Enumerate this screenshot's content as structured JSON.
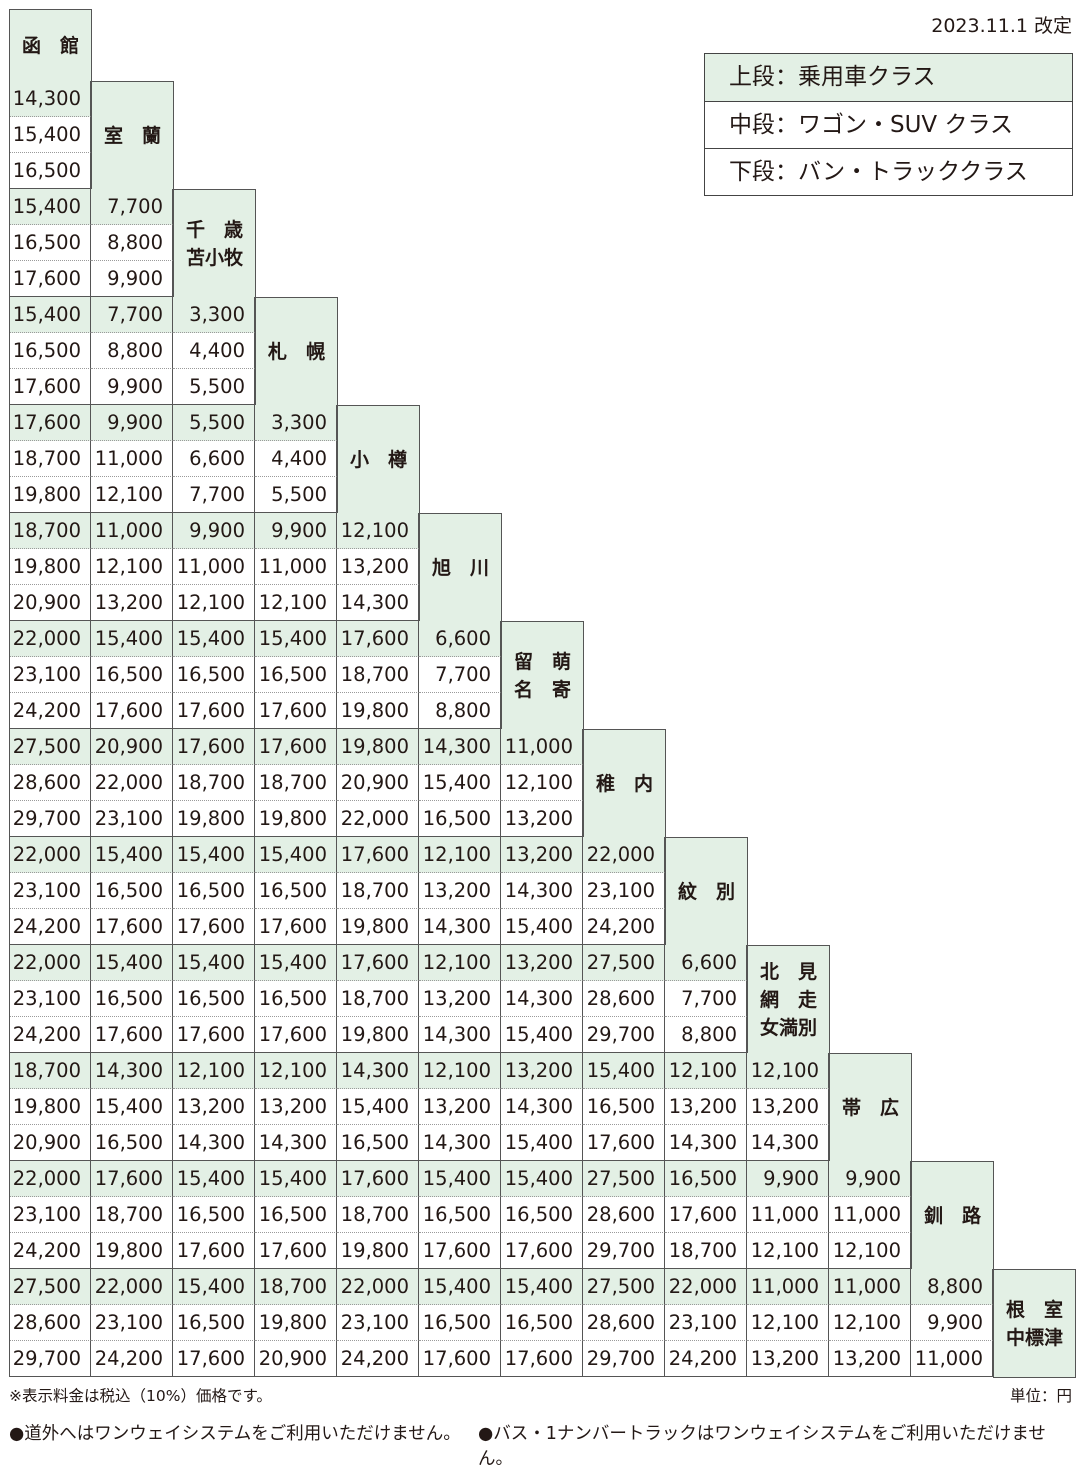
{
  "revision_date": "2023.11.1 改定",
  "legend": [
    "上段：乗用車クラス",
    "中段：ワゴン・SUV クラス",
    "下段：バン・トラッククラス"
  ],
  "stations": [
    [
      "函　館"
    ],
    [
      "室　蘭"
    ],
    [
      "千　歳",
      "苫小牧"
    ],
    [
      "札　幌"
    ],
    [
      "小　樽"
    ],
    [
      "旭　川"
    ],
    [
      "留　萌",
      "名　寄"
    ],
    [
      "稚　内"
    ],
    [
      "紋　別"
    ],
    [
      "北　見",
      "網　走",
      "女満別"
    ],
    [
      "帯　広"
    ],
    [
      "釧　路"
    ],
    [
      "根　室",
      "中標津"
    ]
  ],
  "fares": [
    [
      [
        "14,300",
        "15,400",
        "16,500"
      ]
    ],
    [
      [
        "15,400",
        "16,500",
        "17,600"
      ],
      [
        "7,700",
        "8,800",
        "9,900"
      ]
    ],
    [
      [
        "15,400",
        "16,500",
        "17,600"
      ],
      [
        "7,700",
        "8,800",
        "9,900"
      ],
      [
        "3,300",
        "4,400",
        "5,500"
      ]
    ],
    [
      [
        "17,600",
        "18,700",
        "19,800"
      ],
      [
        "9,900",
        "11,000",
        "12,100"
      ],
      [
        "5,500",
        "6,600",
        "7,700"
      ],
      [
        "3,300",
        "4,400",
        "5,500"
      ]
    ],
    [
      [
        "18,700",
        "19,800",
        "20,900"
      ],
      [
        "11,000",
        "12,100",
        "13,200"
      ],
      [
        "9,900",
        "11,000",
        "12,100"
      ],
      [
        "9,900",
        "11,000",
        "12,100"
      ],
      [
        "12,100",
        "13,200",
        "14,300"
      ]
    ],
    [
      [
        "22,000",
        "23,100",
        "24,200"
      ],
      [
        "15,400",
        "16,500",
        "17,600"
      ],
      [
        "15,400",
        "16,500",
        "17,600"
      ],
      [
        "15,400",
        "16,500",
        "17,600"
      ],
      [
        "17,600",
        "18,700",
        "19,800"
      ],
      [
        "6,600",
        "7,700",
        "8,800"
      ]
    ],
    [
      [
        "27,500",
        "28,600",
        "29,700"
      ],
      [
        "20,900",
        "22,000",
        "23,100"
      ],
      [
        "17,600",
        "18,700",
        "19,800"
      ],
      [
        "17,600",
        "18,700",
        "19,800"
      ],
      [
        "19,800",
        "20,900",
        "22,000"
      ],
      [
        "14,300",
        "15,400",
        "16,500"
      ],
      [
        "11,000",
        "12,100",
        "13,200"
      ]
    ],
    [
      [
        "22,000",
        "23,100",
        "24,200"
      ],
      [
        "15,400",
        "16,500",
        "17,600"
      ],
      [
        "15,400",
        "16,500",
        "17,600"
      ],
      [
        "15,400",
        "16,500",
        "17,600"
      ],
      [
        "17,600",
        "18,700",
        "19,800"
      ],
      [
        "12,100",
        "13,200",
        "14,300"
      ],
      [
        "13,200",
        "14,300",
        "15,400"
      ],
      [
        "22,000",
        "23,100",
        "24,200"
      ]
    ],
    [
      [
        "22,000",
        "23,100",
        "24,200"
      ],
      [
        "15,400",
        "16,500",
        "17,600"
      ],
      [
        "15,400",
        "16,500",
        "17,600"
      ],
      [
        "15,400",
        "16,500",
        "17,600"
      ],
      [
        "17,600",
        "18,700",
        "19,800"
      ],
      [
        "12,100",
        "13,200",
        "14,300"
      ],
      [
        "13,200",
        "14,300",
        "15,400"
      ],
      [
        "27,500",
        "28,600",
        "29,700"
      ],
      [
        "6,600",
        "7,700",
        "8,800"
      ]
    ],
    [
      [
        "18,700",
        "19,800",
        "20,900"
      ],
      [
        "14,300",
        "15,400",
        "16,500"
      ],
      [
        "12,100",
        "13,200",
        "14,300"
      ],
      [
        "12,100",
        "13,200",
        "14,300"
      ],
      [
        "14,300",
        "15,400",
        "16,500"
      ],
      [
        "12,100",
        "13,200",
        "14,300"
      ],
      [
        "13,200",
        "14,300",
        "15,400"
      ],
      [
        "15,400",
        "16,500",
        "17,600"
      ],
      [
        "12,100",
        "13,200",
        "14,300"
      ],
      [
        "12,100",
        "13,200",
        "14,300"
      ]
    ],
    [
      [
        "22,000",
        "23,100",
        "24,200"
      ],
      [
        "17,600",
        "18,700",
        "19,800"
      ],
      [
        "15,400",
        "16,500",
        "17,600"
      ],
      [
        "15,400",
        "16,500",
        "17,600"
      ],
      [
        "17,600",
        "18,700",
        "19,800"
      ],
      [
        "15,400",
        "16,500",
        "17,600"
      ],
      [
        "15,400",
        "16,500",
        "17,600"
      ],
      [
        "27,500",
        "28,600",
        "29,700"
      ],
      [
        "16,500",
        "17,600",
        "18,700"
      ],
      [
        "9,900",
        "11,000",
        "12,100"
      ],
      [
        "9,900",
        "11,000",
        "12,100"
      ]
    ],
    [
      [
        "27,500",
        "28,600",
        "29,700"
      ],
      [
        "22,000",
        "23,100",
        "24,200"
      ],
      [
        "15,400",
        "16,500",
        "17,600"
      ],
      [
        "18,700",
        "19,800",
        "20,900"
      ],
      [
        "22,000",
        "23,100",
        "24,200"
      ],
      [
        "15,400",
        "16,500",
        "17,600"
      ],
      [
        "15,400",
        "16,500",
        "17,600"
      ],
      [
        "27,500",
        "28,600",
        "29,700"
      ],
      [
        "22,000",
        "23,100",
        "24,200"
      ],
      [
        "11,000",
        "12,100",
        "13,200"
      ],
      [
        "11,000",
        "12,100",
        "13,200"
      ],
      [
        "8,800",
        "9,900",
        "11,000"
      ]
    ]
  ],
  "note_tax": "※表示料金は税込（10%）価格です。",
  "note_unit": "単位：円",
  "footnotes": [
    "●道外へはワンウェイシステムをご利用いただけません。",
    "●バス・1ナンバートラックはワンウェイシステムをご利用いただけません。"
  ]
}
